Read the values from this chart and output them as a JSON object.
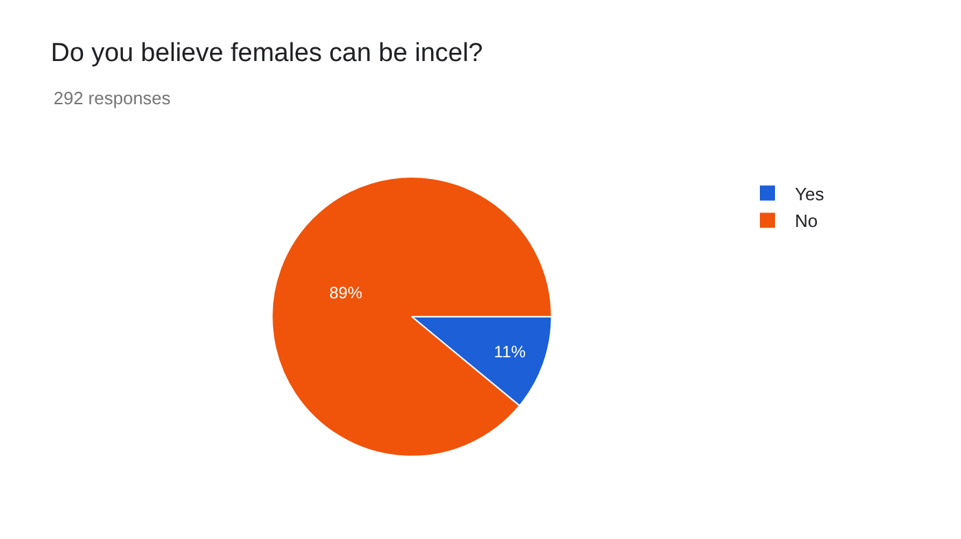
{
  "chart_data": {
    "type": "pie",
    "title": "Do you believe females can be incel?",
    "subtitle": "292 responses",
    "categories": [
      "Yes",
      "No"
    ],
    "values": [
      11,
      89
    ],
    "colors": [
      "#1c5fd6",
      "#f0530a"
    ],
    "value_labels": [
      "11%",
      "89%"
    ],
    "legend": "top right"
  }
}
